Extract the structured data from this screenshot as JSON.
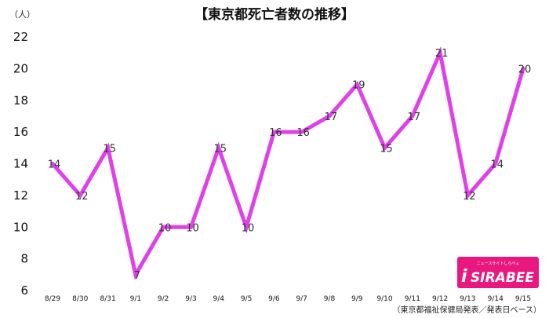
{
  "chart_data": {
    "type": "line",
    "title": "【東京都死亡者数の推移】",
    "unit_label": "（人）",
    "xlabel": "",
    "ylabel": "",
    "categories": [
      "8/29",
      "8/30",
      "8/31",
      "9/1",
      "9/2",
      "9/3",
      "9/4",
      "9/5",
      "9/6",
      "9/7",
      "9/8",
      "9/9",
      "9/10",
      "9/11",
      "9/12",
      "9/13",
      "9/14",
      "9/15"
    ],
    "values": [
      14,
      12,
      15,
      7,
      10,
      10,
      15,
      10,
      16,
      16,
      17,
      19,
      15,
      17,
      21,
      12,
      14,
      20
    ],
    "ylim": [
      6,
      22
    ],
    "yticks": [
      6,
      8,
      10,
      12,
      14,
      16,
      18,
      20,
      22
    ],
    "grid": false,
    "line_color": "#e040e8",
    "source": "（東京都福祉保健局発表／発表日ベース）"
  },
  "logo": {
    "brand": "SIRABEE",
    "tagline": "ニュースサイトしらべぇ",
    "color": "#e8187f"
  }
}
